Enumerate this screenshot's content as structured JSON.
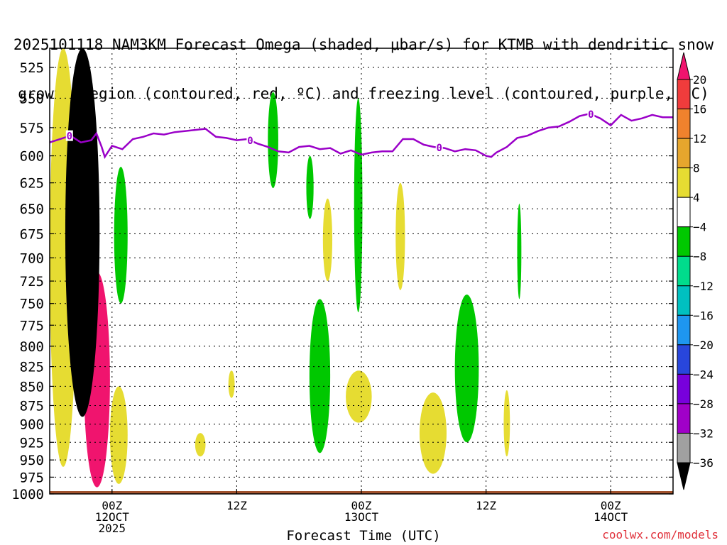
{
  "title": {
    "line1": "2025101118 NAM3KM Forecast Omega (shaded, μbar/s) for KTMB with dendritic snow",
    "line2": "growth region (contoured, red, ºC) and freezing level (contoured, purple, ºC)"
  },
  "credit": "coolwx.com/models",
  "chart_data": {
    "type": "heatmap",
    "title": "2025101118 NAM3KM Forecast Omega (shaded, μbar/s) for KTMB with dendritic snow growth region (contoured, red, ºC) and freezing level (contoured, purple, ºC)",
    "xlabel": "Forecast Time (UTC)",
    "ylabel": "",
    "x_unit": "forecast hour from 2025-10-11 18Z",
    "xlim": [
      0,
      60
    ],
    "ylim": [
      1000,
      510
    ],
    "y_levels": [
      525,
      550,
      575,
      600,
      625,
      650,
      675,
      700,
      725,
      750,
      775,
      800,
      825,
      850,
      875,
      900,
      925,
      950,
      975,
      1000
    ],
    "x_ticks": [
      {
        "hour": 6,
        "lines": [
          "00Z",
          "12OCT",
          "2025"
        ]
      },
      {
        "hour": 18,
        "lines": [
          "12Z"
        ]
      },
      {
        "hour": 30,
        "lines": [
          "00Z",
          "13OCT"
        ]
      },
      {
        "hour": 42,
        "lines": [
          "12Z"
        ]
      },
      {
        "hour": 54,
        "lines": [
          "00Z",
          "14OCT"
        ]
      }
    ],
    "grid": true,
    "colorbar": {
      "labels": [
        "20",
        "16",
        "12",
        "8",
        "4",
        "−4",
        "−8",
        "−12",
        "−16",
        "−20",
        "−24",
        "−28",
        "−32",
        "−36"
      ],
      "colors": [
        "#f0146e",
        "#f03c3c",
        "#f0822d",
        "#e6a62d",
        "#e6dc32",
        "#ffffff",
        "#00c800",
        "#00dc8c",
        "#00c0c0",
        "#1e96f0",
        "#2846dc",
        "#7800dc",
        "#a000c8",
        "#a0a0a0",
        "#000000"
      ]
    },
    "freezing_level": {
      "label": "0",
      "color": "#9a00c8",
      "points": [
        [
          0,
          588
        ],
        [
          2,
          582
        ],
        [
          3,
          588
        ],
        [
          4,
          586
        ],
        [
          4.5,
          580
        ],
        [
          5,
          592
        ],
        [
          5.3,
          601
        ],
        [
          6,
          591
        ],
        [
          7,
          594
        ],
        [
          8,
          585
        ],
        [
          9,
          583
        ],
        [
          10,
          580
        ],
        [
          11,
          581
        ],
        [
          12,
          579
        ],
        [
          13,
          578
        ],
        [
          14,
          577
        ],
        [
          15,
          576
        ],
        [
          16,
          583
        ],
        [
          17,
          584
        ],
        [
          18,
          586
        ],
        [
          19,
          585
        ],
        [
          20,
          589
        ],
        [
          21,
          592
        ],
        [
          22,
          596
        ],
        [
          23,
          597
        ],
        [
          24,
          592
        ],
        [
          25,
          591
        ],
        [
          26,
          594
        ],
        [
          27,
          593
        ],
        [
          28,
          598
        ],
        [
          29,
          595
        ],
        [
          30,
          599
        ],
        [
          31,
          597
        ],
        [
          32,
          596
        ],
        [
          33,
          596
        ],
        [
          34,
          585
        ],
        [
          35,
          585
        ],
        [
          36,
          590
        ],
        [
          37,
          592
        ],
        [
          38,
          593
        ],
        [
          39,
          596
        ],
        [
          40,
          594
        ],
        [
          41,
          595
        ],
        [
          42,
          600
        ],
        [
          42.5,
          601
        ],
        [
          43,
          597
        ],
        [
          44,
          592
        ],
        [
          45,
          584
        ],
        [
          46,
          582
        ],
        [
          47,
          578
        ],
        [
          48,
          575
        ],
        [
          49,
          574
        ],
        [
          50,
          570
        ],
        [
          51,
          565
        ],
        [
          52,
          563
        ],
        [
          53,
          567
        ],
        [
          54,
          573
        ],
        [
          55,
          564
        ],
        [
          56,
          569
        ],
        [
          57,
          567
        ],
        [
          58,
          564
        ],
        [
          59,
          566
        ],
        [
          60,
          566
        ]
      ],
      "labeled_at_hours": [
        1.9,
        19.3,
        37.5,
        52.1
      ]
    },
    "omega_regions": [
      {
        "name": "positive",
        "value": ">20",
        "color": "#f0146e",
        "x_range": [
          3.3,
          5.8
        ],
        "p_range": [
          715,
          990
        ]
      },
      {
        "name": "positive",
        "value": "8-12",
        "color": "#e6a62d",
        "x_range": [
          1.0,
          2.0
        ],
        "p_range": [
          615,
          760
        ]
      },
      {
        "name": "positive",
        "value": "4-8",
        "color": "#e6dc32",
        "x_range": [
          0.0,
          2.6
        ],
        "p_range": [
          510,
          960
        ]
      },
      {
        "name": "positive",
        "value": "4-8",
        "color": "#e6dc32",
        "x_range": [
          5.8,
          7.5
        ],
        "p_range": [
          850,
          985
        ]
      },
      {
        "name": "positive",
        "value": "4-8",
        "color": "#e6dc32",
        "x_range": [
          14.0,
          15.0
        ],
        "p_range": [
          912,
          945
        ]
      },
      {
        "name": "positive",
        "value": "4-8",
        "color": "#e6dc32",
        "x_range": [
          17.2,
          17.8
        ],
        "p_range": [
          830,
          865
        ]
      },
      {
        "name": "positive",
        "value": "4-8",
        "color": "#e6dc32",
        "x_range": [
          26.3,
          27.2
        ],
        "p_range": [
          640,
          725
        ]
      },
      {
        "name": "positive",
        "value": "4-8",
        "color": "#e6dc32",
        "x_range": [
          28.5,
          31.0
        ],
        "p_range": [
          830,
          898
        ]
      },
      {
        "name": "positive",
        "value": "4-8",
        "color": "#e6dc32",
        "x_range": [
          33.3,
          34.2
        ],
        "p_range": [
          625,
          735
        ]
      },
      {
        "name": "positive",
        "value": "4-8",
        "color": "#e6dc32",
        "x_range": [
          35.6,
          38.2
        ],
        "p_range": [
          858,
          970
        ]
      },
      {
        "name": "positive",
        "value": "4-8",
        "color": "#e6dc32",
        "x_range": [
          43.7,
          44.3
        ],
        "p_range": [
          855,
          945
        ]
      },
      {
        "name": "negative",
        "value": "-4 to -8",
        "color": "#00c800",
        "x_range": [
          6.2,
          7.5
        ],
        "p_range": [
          610,
          750
        ]
      },
      {
        "name": "negative",
        "value": "-4 to -8",
        "color": "#00c800",
        "x_range": [
          21.0,
          22.0
        ],
        "p_range": [
          545,
          630
        ]
      },
      {
        "name": "negative",
        "value": "-4 to -8",
        "color": "#00c800",
        "x_range": [
          24.7,
          25.4
        ],
        "p_range": [
          600,
          660
        ]
      },
      {
        "name": "negative",
        "value": "-4 to -8",
        "color": "#00c800",
        "x_range": [
          25.0,
          27.0
        ],
        "p_range": [
          745,
          940
        ]
      },
      {
        "name": "negative",
        "value": "-4 to -8",
        "color": "#00c800",
        "x_range": [
          29.3,
          30.1
        ],
        "p_range": [
          550,
          760
        ]
      },
      {
        "name": "negative",
        "value": "-4 to -8",
        "color": "#00c800",
        "x_range": [
          39.0,
          41.3
        ],
        "p_range": [
          740,
          925
        ]
      },
      {
        "name": "negative",
        "value": "-4 to -8",
        "color": "#00c800",
        "x_range": [
          45.0,
          45.4
        ],
        "p_range": [
          645,
          745
        ]
      },
      {
        "name": "negative",
        "value": "-36 and below",
        "color": "#000000",
        "x_range": [
          1.5,
          4.8
        ],
        "p_range": [
          510,
          890
        ]
      }
    ]
  }
}
